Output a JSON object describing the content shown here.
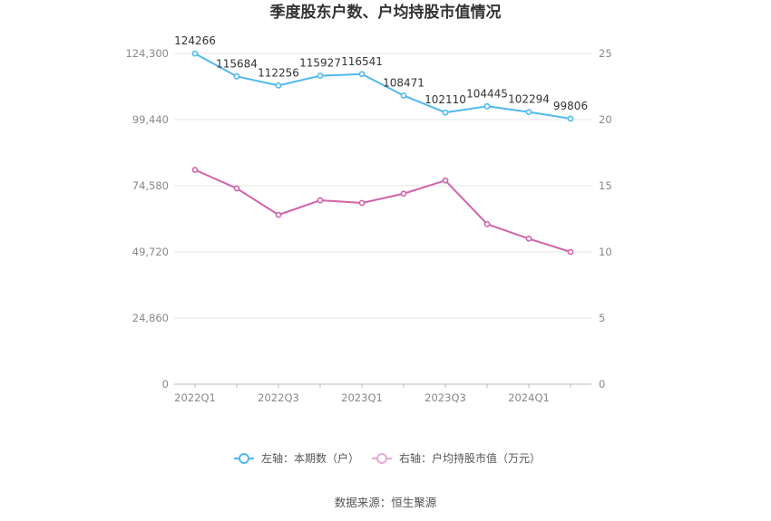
{
  "chart_data": {
    "type": "line",
    "title": "季度股东户数、户均持股市值情况",
    "categories": [
      "2022Q1",
      "2022Q2",
      "2022Q3",
      "2022Q4",
      "2023Q1",
      "2023Q2",
      "2023Q3",
      "2023Q4",
      "2024Q1",
      "2024Q2"
    ],
    "x_tick_labels": [
      "2022Q1",
      "2022Q3",
      "2023Q1",
      "2023Q3",
      "2024Q1"
    ],
    "left_axis": {
      "ticks": [
        "0",
        "24,860",
        "49,720",
        "74,580",
        "99,440",
        "124,300"
      ],
      "ylim": [
        0,
        124300
      ]
    },
    "right_axis": {
      "ticks": [
        "0",
        "5",
        "10",
        "15",
        "20",
        "25"
      ],
      "ylim": [
        0,
        25
      ]
    },
    "series": [
      {
        "name": "左轴：本期数（户）",
        "axis": "left",
        "color": "#4fb9ee",
        "values": [
          124266,
          115684,
          112256,
          115927,
          116541,
          108471,
          102110,
          104445,
          102294,
          99806
        ],
        "labels": [
          "124266",
          "115684",
          "112256",
          "115927",
          "116541",
          "108471",
          "102110",
          "104445",
          "102294",
          "99806"
        ]
      },
      {
        "name": "右轴：户均持股市值（万元）",
        "axis": "right",
        "color": "#d063ab",
        "values": [
          16.2,
          14.8,
          12.8,
          13.9,
          13.7,
          14.4,
          15.4,
          12.1,
          11.0,
          10.0
        ]
      }
    ],
    "legend_position": "bottom",
    "grid": true,
    "source": "数据来源：恒生聚源"
  }
}
